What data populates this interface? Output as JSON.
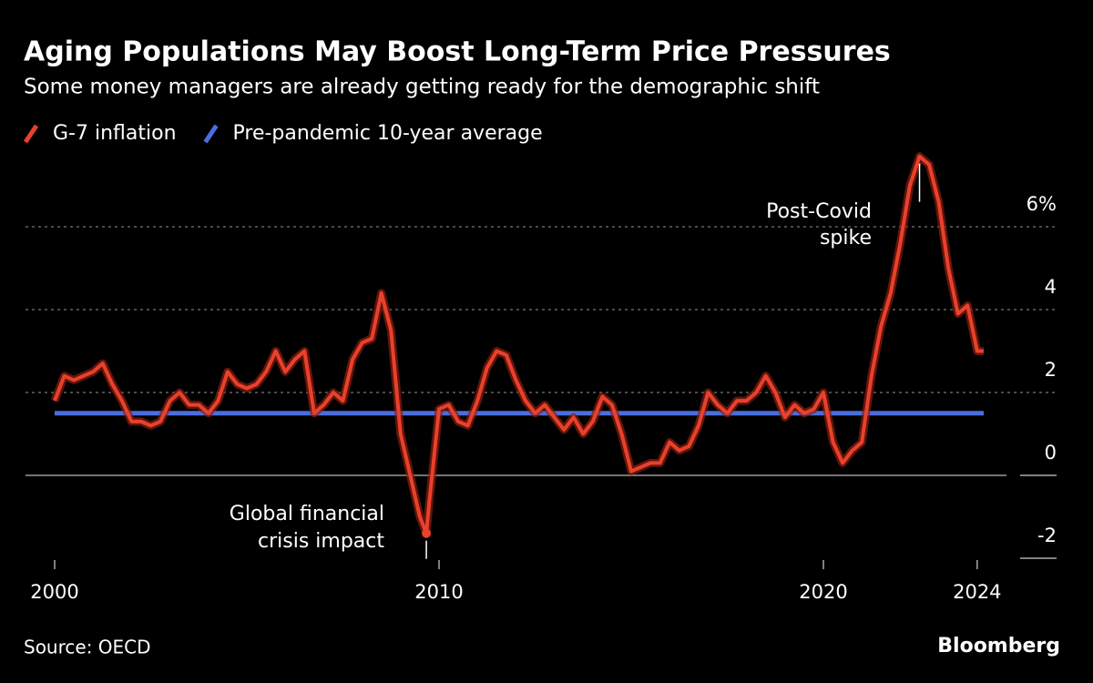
{
  "chart_data": {
    "type": "line",
    "title": "Aging Populations May Boost Long-Term Price Pressures",
    "subtitle": "Some money managers are already getting ready for the demographic shift",
    "source": "Source: OECD",
    "brand": "Bloomberg",
    "series": [
      {
        "name": "G-7 inflation",
        "color": "#e8412c",
        "x": [
          2000,
          2000.25,
          2000.5,
          2000.75,
          2001,
          2001.25,
          2001.5,
          2001.75,
          2002,
          2002.25,
          2002.5,
          2002.75,
          2003,
          2003.25,
          2003.5,
          2003.75,
          2004,
          2004.25,
          2004.5,
          2004.75,
          2005,
          2005.25,
          2005.5,
          2005.75,
          2006,
          2006.25,
          2006.5,
          2006.75,
          2007,
          2007.25,
          2007.5,
          2007.75,
          2008,
          2008.25,
          2008.5,
          2008.75,
          2009,
          2009.25,
          2009.5,
          2009.67,
          2009.75,
          2010,
          2010.25,
          2010.5,
          2010.75,
          2011,
          2011.25,
          2011.5,
          2011.75,
          2012,
          2012.25,
          2012.5,
          2012.75,
          2013,
          2013.25,
          2013.5,
          2013.75,
          2014,
          2014.25,
          2014.5,
          2014.75,
          2015,
          2015.25,
          2015.5,
          2015.75,
          2016,
          2016.25,
          2016.5,
          2016.75,
          2017,
          2017.25,
          2017.5,
          2017.75,
          2018,
          2018.25,
          2018.5,
          2018.75,
          2019,
          2019.25,
          2019.5,
          2019.75,
          2020,
          2020.25,
          2020.5,
          2020.75,
          2021,
          2021.25,
          2021.5,
          2021.75,
          2022,
          2022.25,
          2022.5,
          2022.75,
          2023,
          2023.25,
          2023.5,
          2023.75,
          2024,
          2024.17
        ],
        "values": [
          1.8,
          2.4,
          2.3,
          2.4,
          2.5,
          2.7,
          2.2,
          1.8,
          1.3,
          1.3,
          1.2,
          1.3,
          1.8,
          2.0,
          1.7,
          1.7,
          1.5,
          1.8,
          2.5,
          2.2,
          2.1,
          2.2,
          2.5,
          3.0,
          2.5,
          2.8,
          3.0,
          1.5,
          1.7,
          2.0,
          1.8,
          2.8,
          3.2,
          3.3,
          4.4,
          3.5,
          1.0,
          0.0,
          -1.0,
          -1.4,
          -0.6,
          1.6,
          1.7,
          1.3,
          1.2,
          1.8,
          2.6,
          3.0,
          2.9,
          2.3,
          1.8,
          1.5,
          1.7,
          1.4,
          1.1,
          1.4,
          1.0,
          1.3,
          1.9,
          1.7,
          1.0,
          0.1,
          0.2,
          0.3,
          0.3,
          0.8,
          0.6,
          0.7,
          1.2,
          2.0,
          1.7,
          1.5,
          1.8,
          1.8,
          2.0,
          2.4,
          2.0,
          1.4,
          1.7,
          1.5,
          1.6,
          2.0,
          0.8,
          0.3,
          0.6,
          0.8,
          2.4,
          3.6,
          4.4,
          5.6,
          7.0,
          7.7,
          7.5,
          6.6,
          5.0,
          3.9,
          4.1,
          3.0,
          3.0
        ]
      },
      {
        "name": "Pre-pandemic 10-year average",
        "color": "#4a6ee0",
        "x": [
          2000,
          2024.17
        ],
        "values": [
          1.5,
          1.5
        ]
      }
    ],
    "annotations": [
      {
        "text": [
          "Post-Covid",
          "spike"
        ]
      },
      {
        "text": [
          "Global financial",
          "crisis impact"
        ]
      }
    ],
    "xlim": [
      2000,
      2024.17
    ],
    "xticks": [
      2000,
      2010,
      2020,
      2024
    ],
    "ylim": [
      -2,
      8
    ],
    "yticks": [
      -2,
      0,
      2,
      4,
      {
        "value": 6,
        "label": "6%"
      }
    ],
    "grid": true
  }
}
